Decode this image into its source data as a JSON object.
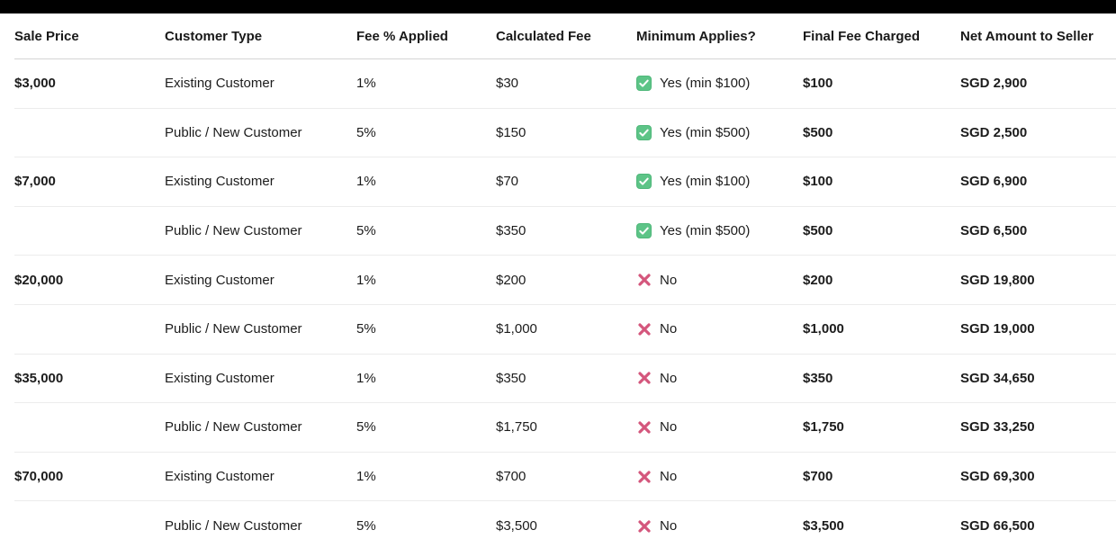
{
  "page": {
    "background_color": "#ffffff",
    "top_bar_color": "#000000"
  },
  "table": {
    "columns": [
      {
        "key": "sale_price",
        "label": "Sale Price"
      },
      {
        "key": "customer_type",
        "label": "Customer Type"
      },
      {
        "key": "fee_pct",
        "label": "Fee % Applied"
      },
      {
        "key": "calculated_fee",
        "label": "Calculated Fee"
      },
      {
        "key": "minimum_applies",
        "label": "Minimum Applies?"
      },
      {
        "key": "final_fee",
        "label": "Final Fee Charged"
      },
      {
        "key": "net_amount",
        "label": "Net Amount to Seller"
      }
    ],
    "icons": {
      "check_color": "#5dc487",
      "check_border": "#4fb87a",
      "check_mark_color": "#ffffff",
      "cross_color": "#d4567c"
    },
    "rows": [
      {
        "sale_price": "$3,000",
        "customer_type": "Existing Customer",
        "fee_pct": "1%",
        "calculated_fee": "$30",
        "minimum_applies": {
          "icon": "check",
          "text": "Yes (min $100)"
        },
        "final_fee": "$100",
        "net_amount": "SGD 2,900"
      },
      {
        "sale_price": "",
        "customer_type": "Public / New Customer",
        "fee_pct": "5%",
        "calculated_fee": "$150",
        "minimum_applies": {
          "icon": "check",
          "text": "Yes (min $500)"
        },
        "final_fee": "$500",
        "net_amount": "SGD 2,500"
      },
      {
        "sale_price": "$7,000",
        "customer_type": "Existing Customer",
        "fee_pct": "1%",
        "calculated_fee": "$70",
        "minimum_applies": {
          "icon": "check",
          "text": "Yes (min $100)"
        },
        "final_fee": "$100",
        "net_amount": "SGD 6,900"
      },
      {
        "sale_price": "",
        "customer_type": "Public / New Customer",
        "fee_pct": "5%",
        "calculated_fee": "$350",
        "minimum_applies": {
          "icon": "check",
          "text": "Yes (min $500)"
        },
        "final_fee": "$500",
        "net_amount": "SGD 6,500"
      },
      {
        "sale_price": "$20,000",
        "customer_type": "Existing Customer",
        "fee_pct": "1%",
        "calculated_fee": "$200",
        "minimum_applies": {
          "icon": "cross",
          "text": "No"
        },
        "final_fee": "$200",
        "net_amount": "SGD 19,800"
      },
      {
        "sale_price": "",
        "customer_type": "Public / New Customer",
        "fee_pct": "5%",
        "calculated_fee": "$1,000",
        "minimum_applies": {
          "icon": "cross",
          "text": "No"
        },
        "final_fee": "$1,000",
        "net_amount": "SGD 19,000"
      },
      {
        "sale_price": "$35,000",
        "customer_type": "Existing Customer",
        "fee_pct": "1%",
        "calculated_fee": "$350",
        "minimum_applies": {
          "icon": "cross",
          "text": "No"
        },
        "final_fee": "$350",
        "net_amount": "SGD 34,650"
      },
      {
        "sale_price": "",
        "customer_type": "Public / New Customer",
        "fee_pct": "5%",
        "calculated_fee": "$1,750",
        "minimum_applies": {
          "icon": "cross",
          "text": "No"
        },
        "final_fee": "$1,750",
        "net_amount": "SGD 33,250"
      },
      {
        "sale_price": "$70,000",
        "customer_type": "Existing Customer",
        "fee_pct": "1%",
        "calculated_fee": "$700",
        "minimum_applies": {
          "icon": "cross",
          "text": "No"
        },
        "final_fee": "$700",
        "net_amount": "SGD 69,300"
      },
      {
        "sale_price": "",
        "customer_type": "Public / New Customer",
        "fee_pct": "5%",
        "calculated_fee": "$3,500",
        "minimum_applies": {
          "icon": "cross",
          "text": "No"
        },
        "final_fee": "$3,500",
        "net_amount": "SGD 66,500"
      }
    ]
  }
}
